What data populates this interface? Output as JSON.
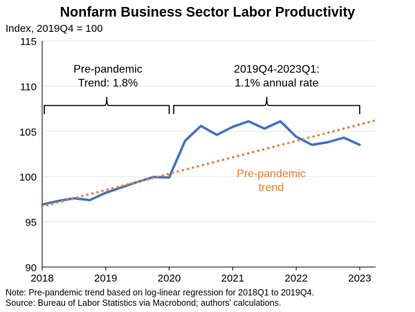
{
  "chart_data": {
    "type": "line",
    "title": "Nonfarm Business Sector Labor Productivity",
    "ylabel": "Index, 2019Q4 = 100",
    "xlim": [
      2018.0,
      2023.25
    ],
    "ylim": [
      90,
      115
    ],
    "yticks": [
      90,
      95,
      100,
      105,
      110,
      115
    ],
    "xticks": [
      2018,
      2019,
      2020,
      2021,
      2022,
      2023
    ],
    "xtick_labels": [
      "2018",
      "2019",
      "2020",
      "2021",
      "2022",
      "2023"
    ],
    "grid": true,
    "series": [
      {
        "color": "#4472C4",
        "style": "solid",
        "x": [
          2018.0,
          2018.25,
          2018.5,
          2018.75,
          2019.0,
          2019.25,
          2019.5,
          2019.75,
          2020.0,
          2020.25,
          2020.5,
          2020.75,
          2021.0,
          2021.25,
          2021.5,
          2021.75,
          2022.0,
          2022.25,
          2022.5,
          2022.75,
          2023.0
        ],
        "y": [
          96.9,
          97.3,
          97.6,
          97.4,
          98.2,
          98.8,
          99.4,
          99.95,
          99.9,
          103.95,
          105.6,
          104.6,
          105.5,
          106.1,
          105.3,
          106.1,
          104.4,
          103.5,
          103.8,
          104.3,
          103.5
        ]
      },
      {
        "name": "Pre-pandemic trend",
        "color": "#ED7D31",
        "style": "dotted",
        "x": [
          2018.0,
          2023.25
        ],
        "y": [
          96.7,
          106.2
        ]
      }
    ],
    "annotations": [
      {
        "id": "pre",
        "text_lines": [
          "Pre-pandemic",
          "Trend: 1.8%"
        ],
        "span": [
          2018.0,
          2020.0
        ]
      },
      {
        "id": "post",
        "text_lines": [
          "2019Q4-2023Q1:",
          "1.1% annual rate"
        ],
        "span": [
          2020.05,
          2023.0
        ]
      },
      {
        "id": "trend",
        "text_lines": [
          "Pre-pandemic",
          "trend"
        ],
        "color": "#ED7D31"
      }
    ],
    "notes": [
      "Note: Pre-pandemic trend based on log-linear regression for 2018Q1 to 2019Q4.",
      "Source: Bureau of Labor Statistics via Macrobond; authors' calculations."
    ]
  }
}
